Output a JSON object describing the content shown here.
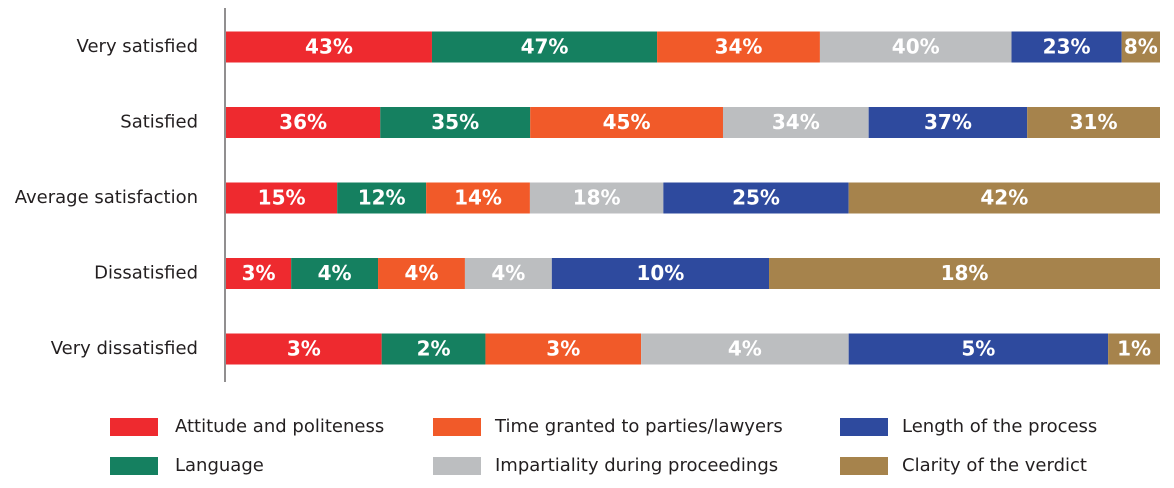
{
  "chart_data": {
    "type": "stacked_bar_horizontal_100",
    "categories": [
      "Very satisfied",
      "Satisfied",
      "Average satisfaction",
      "Dissatisfied",
      "Very dissatisfied"
    ],
    "series": [
      {
        "name": "Attitude and politeness",
        "color": "#ee2a2f",
        "values": [
          43,
          36,
          15,
          3,
          3
        ],
        "value_labels": [
          "43%",
          "36%",
          "15%",
          "3%",
          "3%"
        ]
      },
      {
        "name": "Language",
        "color": "#158060",
        "values": [
          47,
          35,
          12,
          4,
          2
        ],
        "value_labels": [
          "47%",
          "35%",
          "12%",
          "4%",
          "2%"
        ]
      },
      {
        "name": "Time granted to parties/lawyers",
        "color": "#f15a29",
        "values": [
          34,
          45,
          14,
          4,
          3
        ],
        "value_labels": [
          "34%",
          "45%",
          "14%",
          "4%",
          "3%"
        ]
      },
      {
        "name": "Impartiality during proceedings",
        "color": "#bcbec0",
        "values": [
          40,
          34,
          18,
          4,
          4
        ],
        "value_labels": [
          "40%",
          "34%",
          "18%",
          "4%",
          "4%"
        ]
      },
      {
        "name": "Length of the process",
        "color": "#2e4a9e",
        "values": [
          23,
          37,
          25,
          10,
          5
        ],
        "value_labels": [
          "23%",
          "37%",
          "25%",
          "10%",
          "5%"
        ]
      },
      {
        "name": "Clarity of the verdict",
        "color": "#a6834c",
        "values": [
          8,
          31,
          42,
          18,
          1
        ],
        "value_labels": [
          "8%",
          "31%",
          "42%",
          "18%",
          "1%"
        ]
      }
    ]
  }
}
